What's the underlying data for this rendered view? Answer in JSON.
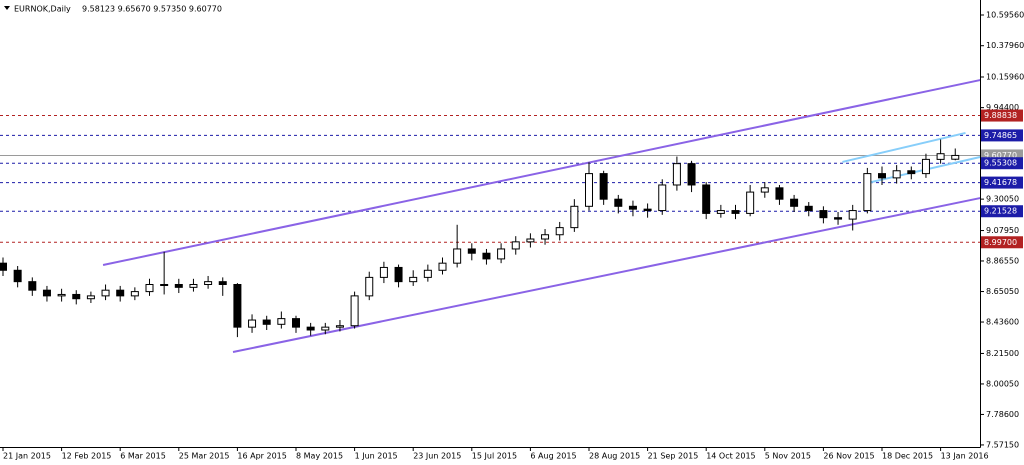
{
  "chart_data": {
    "type": "candlestick",
    "title": "EURNOK,Daily",
    "ohlc_text": "9.58123 9.65670 9.57350 9.60770",
    "categories": [
      "21 Jan 2015",
      null,
      null,
      null,
      "12 Feb 2015",
      null,
      null,
      null,
      "6 Mar 2015",
      null,
      null,
      null,
      "25 Mar 2015",
      null,
      null,
      null,
      "16 Apr 2015",
      null,
      null,
      null,
      "8 May 2015",
      null,
      null,
      null,
      "1 Jun 2015",
      null,
      null,
      null,
      "23 Jun 2015",
      null,
      null,
      null,
      "15 Jul 2015",
      null,
      null,
      null,
      "6 Aug 2015",
      null,
      null,
      null,
      "28 Aug 2015",
      null,
      null,
      null,
      "21 Sep 2015",
      null,
      null,
      null,
      "14 Oct 2015",
      null,
      null,
      null,
      "5 Nov 2015",
      null,
      null,
      null,
      "26 Nov 2015",
      null,
      null,
      null,
      "18 Dec 2015",
      null,
      null,
      null,
      "13 Jan 2016",
      null
    ],
    "open": [
      8.85,
      8.8,
      8.72,
      8.66,
      8.62,
      8.63,
      8.6,
      8.62,
      8.66,
      8.62,
      8.65,
      8.7,
      8.7,
      8.68,
      8.7,
      8.72,
      8.7,
      8.4,
      8.45,
      8.42,
      8.46,
      8.4,
      8.38,
      8.4,
      8.41,
      8.62,
      8.75,
      8.82,
      8.72,
      8.75,
      8.8,
      8.85,
      8.95,
      8.92,
      8.88,
      8.95,
      9.0,
      9.02,
      9.05,
      9.1,
      9.25,
      9.48,
      9.3,
      9.25,
      9.23,
      9.22,
      9.4,
      9.55,
      9.4,
      9.2,
      9.22,
      9.2,
      9.35,
      9.38,
      9.3,
      9.25,
      9.22,
      9.17,
      9.16,
      9.22,
      9.48,
      9.45,
      9.5,
      9.48,
      9.58,
      9.58123
    ],
    "high": [
      8.89,
      8.83,
      8.75,
      8.69,
      8.67,
      8.66,
      8.65,
      8.7,
      8.69,
      8.68,
      8.74,
      8.93,
      8.74,
      8.74,
      8.76,
      8.75,
      8.71,
      8.49,
      8.48,
      8.51,
      8.48,
      8.43,
      8.43,
      8.45,
      8.65,
      8.79,
      8.86,
      8.84,
      8.8,
      8.84,
      8.89,
      9.12,
      8.99,
      8.95,
      8.99,
      9.04,
      9.06,
      9.09,
      9.14,
      9.3,
      9.56,
      9.5,
      9.33,
      9.29,
      9.27,
      9.44,
      9.6,
      9.57,
      9.42,
      9.26,
      9.26,
      9.4,
      9.42,
      9.4,
      9.33,
      9.28,
      9.25,
      9.21,
      9.26,
      9.52,
      9.53,
      9.54,
      9.53,
      9.62,
      9.72,
      9.6567
    ],
    "low": [
      8.76,
      8.68,
      8.62,
      8.58,
      8.58,
      8.56,
      8.57,
      8.59,
      8.58,
      8.59,
      8.62,
      8.63,
      8.64,
      8.65,
      8.67,
      8.62,
      8.33,
      8.36,
      8.38,
      8.39,
      8.36,
      8.34,
      8.35,
      8.37,
      8.39,
      8.59,
      8.71,
      8.68,
      8.69,
      8.72,
      8.77,
      8.82,
      8.87,
      8.84,
      8.85,
      8.91,
      8.96,
      8.98,
      9.01,
      9.07,
      9.22,
      9.26,
      9.2,
      9.18,
      9.17,
      9.19,
      9.36,
      9.35,
      9.16,
      9.17,
      9.16,
      9.18,
      9.31,
      9.26,
      9.21,
      9.18,
      9.13,
      9.12,
      9.08,
      9.2,
      9.4,
      9.41,
      9.44,
      9.45,
      9.55,
      9.5735
    ],
    "close": [
      8.8,
      8.72,
      8.66,
      8.62,
      8.63,
      8.6,
      8.62,
      8.66,
      8.62,
      8.65,
      8.7,
      8.7,
      8.68,
      8.7,
      8.72,
      8.7,
      8.4,
      8.45,
      8.42,
      8.46,
      8.4,
      8.38,
      8.4,
      8.41,
      8.62,
      8.75,
      8.82,
      8.72,
      8.75,
      8.8,
      8.85,
      8.95,
      8.92,
      8.88,
      8.95,
      9.0,
      9.02,
      9.05,
      9.1,
      9.25,
      9.48,
      9.3,
      9.25,
      9.23,
      9.22,
      9.4,
      9.55,
      9.4,
      9.2,
      9.22,
      9.2,
      9.35,
      9.38,
      9.3,
      9.25,
      9.22,
      9.17,
      9.16,
      9.22,
      9.48,
      9.45,
      9.5,
      9.48,
      9.58,
      9.62,
      9.6077
    ],
    "up_color": "#ffffff",
    "down_color": "#000000",
    "ylim": [
      7.557,
      10.68
    ],
    "yticks": [
      {
        "value": 10.5956,
        "label": "10.59560"
      },
      {
        "value": 10.3796,
        "label": "10.37960"
      },
      {
        "value": 10.1596,
        "label": "10.15960"
      },
      {
        "value": 9.944,
        "label": "9.94400"
      },
      {
        "value": 9.3005,
        "label": "9.30050"
      },
      {
        "value": 9.0795,
        "label": "9.07950"
      },
      {
        "value": 8.8655,
        "label": "8.86550"
      },
      {
        "value": 8.6505,
        "label": "8.65050"
      },
      {
        "value": 8.436,
        "label": "8.43600"
      },
      {
        "value": 8.215,
        "label": "8.21500"
      },
      {
        "value": 8.0005,
        "label": "8.00050"
      },
      {
        "value": 7.786,
        "label": "7.78600"
      },
      {
        "value": 7.5715,
        "label": "7.57150"
      }
    ],
    "levels": [
      {
        "value": 9.88838,
        "label": "9.88838",
        "color": "#b22222",
        "dashed": true
      },
      {
        "value": 9.74865,
        "label": "9.74865",
        "color": "#1c1ca8",
        "dashed": true
      },
      {
        "value": 9.6077,
        "label": "9.60770",
        "color": "#9a9a9a",
        "dashed": false
      },
      {
        "value": 9.55308,
        "label": "9.55308",
        "color": "#1c1ca8",
        "dashed": true
      },
      {
        "value": 9.41678,
        "label": "9.41678",
        "color": "#1c1ca8",
        "dashed": true
      },
      {
        "value": 9.21528,
        "label": "9.21528",
        "color": "#1c1ca8",
        "dashed": true
      },
      {
        "value": 8.997,
        "label": "8.99700",
        "color": "#b22222",
        "dashed": true
      }
    ],
    "trendlines": [
      {
        "color": "#8a63e6",
        "x": [
          6.83,
          66.7
        ],
        "y": [
          8.837,
          10.138
        ]
      },
      {
        "color": "#8a63e6",
        "x": [
          15.7,
          66.7
        ],
        "y": [
          8.225,
          9.308
        ]
      },
      {
        "color": "#87cefa",
        "x": [
          57.3,
          65.7
        ],
        "y": [
          9.562,
          9.766
        ]
      },
      {
        "color": "#87cefa",
        "x": [
          59.0,
          66.7
        ],
        "y": [
          9.414,
          9.597
        ]
      }
    ]
  }
}
